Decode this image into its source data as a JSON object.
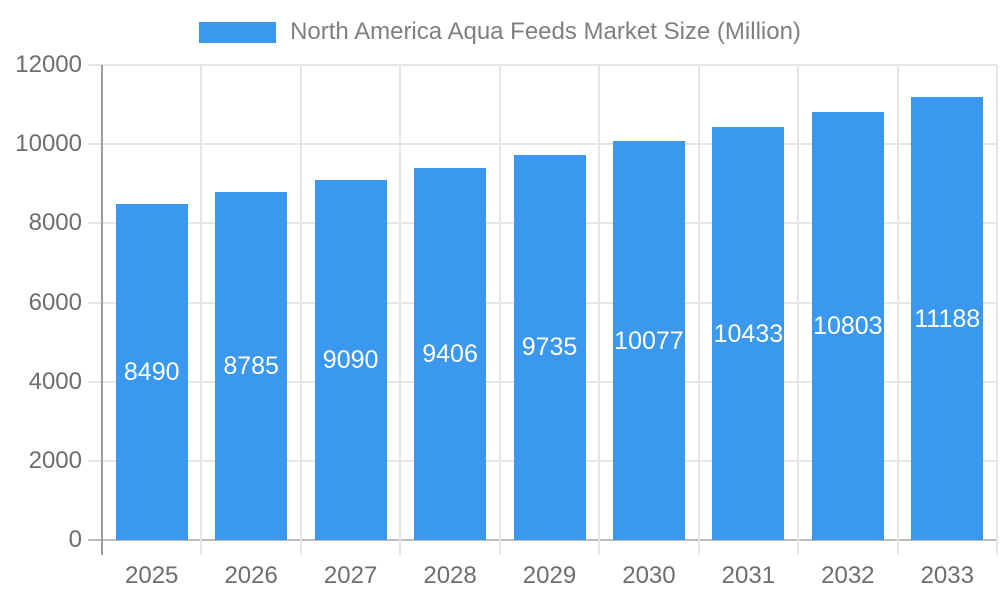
{
  "chart_data": {
    "type": "bar",
    "title": "North America Aqua Feeds Market Size (Million)",
    "categories": [
      "2025",
      "2026",
      "2027",
      "2028",
      "2029",
      "2030",
      "2031",
      "2032",
      "2033"
    ],
    "values": [
      8490,
      8785,
      9090,
      9406,
      9735,
      10077,
      10433,
      10803,
      11188
    ],
    "xlabel": "",
    "ylabel": "",
    "ylim": [
      0,
      12000
    ],
    "ytick_step": 2000,
    "grid": true,
    "legend_position": "top",
    "value_labels": "inside-center",
    "colors": {
      "bar": "#3a99ee",
      "grid_line": "#e6e6e6",
      "axis_line": "#9e9e9e",
      "zero_line": "#bdbdbd",
      "tick_label": "#6e6e6e",
      "legend_label": "#808080",
      "value_label": "#ffffff",
      "background": "#ffffff"
    }
  }
}
